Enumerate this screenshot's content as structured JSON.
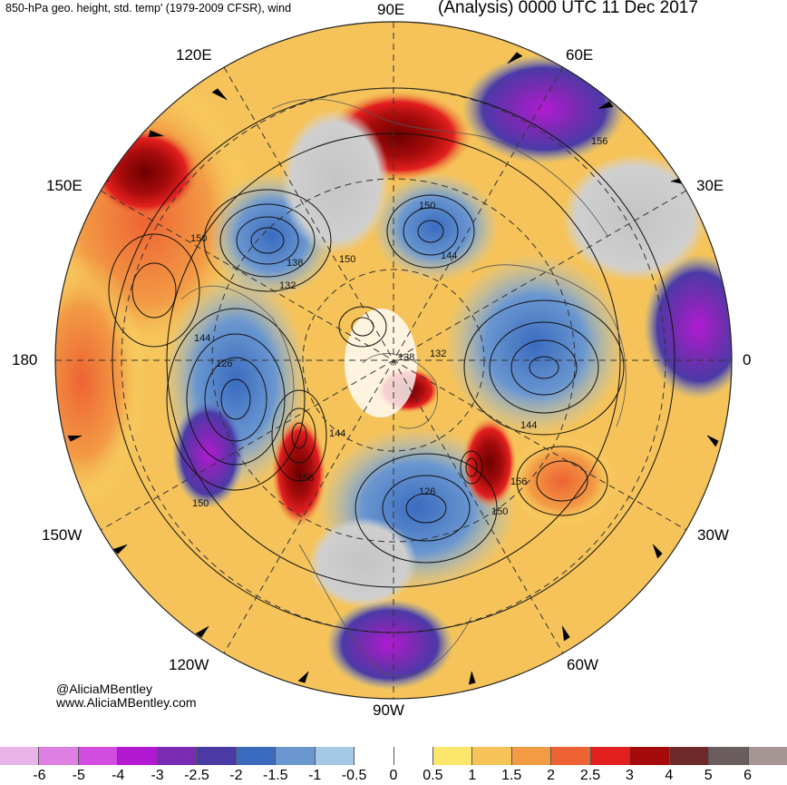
{
  "header": {
    "left_title": "850-hPa geo. height, std. temp' (1979-2009 CFSR), wind",
    "right_title": "(Analysis) 0000 UTC 11 Dec 2017"
  },
  "longitude_labels": {
    "e90": "90E",
    "e60": "60E",
    "e30": "30E",
    "zero": "0",
    "w30": "30W",
    "w60": "60W",
    "w90": "90W",
    "w120": "120W",
    "w150": "150W",
    "d180": "180",
    "e150": "150E",
    "e120": "120E"
  },
  "contour_labels": [
    "150",
    "138",
    "150",
    "132",
    "144",
    "126",
    "156",
    "150",
    "144",
    "150",
    "144",
    "138",
    "132",
    "144",
    "156",
    "150",
    "126",
    "156"
  ],
  "credits": {
    "handle": "@AliciaMBentley",
    "website": "www.AliciaMBentley.com"
  },
  "colorbar": {
    "colors": [
      "#e8b4e8",
      "#de7fe3",
      "#d24ce0",
      "#b21ad2",
      "#7a2bb3",
      "#4b3aa6",
      "#3a6bbf",
      "#6a97d0",
      "#a5c8e6",
      "#ffffff",
      "#ffffff",
      "#fbe56b",
      "#f5c35a",
      "#f29b45",
      "#ee6333",
      "#e21f1f",
      "#a50b0b",
      "#6e2a2a",
      "#6b5d5d",
      "#a59595"
    ],
    "tick_labels": [
      "-6",
      "-5",
      "-4",
      "-3",
      "-2.5",
      "-2",
      "-1.5",
      "-1",
      "-0.5",
      "0",
      "0.5",
      "1",
      "1.5",
      "2",
      "2.5",
      "3",
      "4",
      "5",
      "6"
    ]
  },
  "field_colors": {
    "warm_strong": "#a50b0b",
    "warm": "#ee6333",
    "warm_mid": "#f29b45",
    "warm_light": "#fbe56b",
    "cool_light": "#a5c8e6",
    "cool": "#6a97d0",
    "cool_strong": "#4b3aa6",
    "very_cold": "#7a2bb3",
    "land_gray": "#c8c8c8"
  }
}
